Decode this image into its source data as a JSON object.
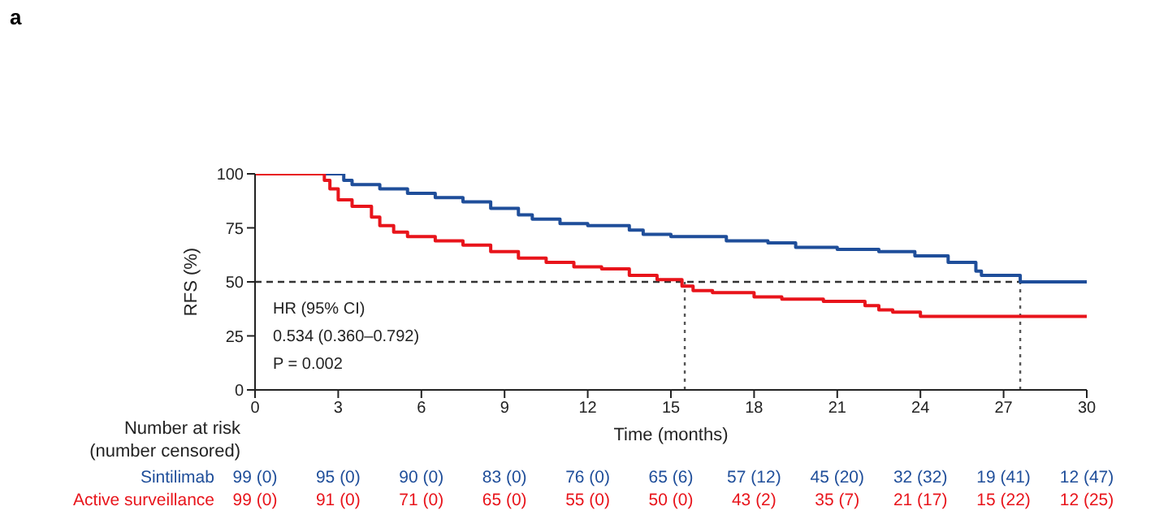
{
  "chart_data": {
    "type": "step",
    "title": "a",
    "xlabel": "Time (months)",
    "ylabel": "RFS (%)",
    "xlim": [
      0,
      30
    ],
    "xticks": [
      0,
      3,
      6,
      9,
      12,
      15,
      18,
      21,
      24,
      27,
      30
    ],
    "ylim": [
      0,
      100
    ],
    "yticks": [
      0,
      25,
      50,
      75,
      100
    ],
    "line_style": "solid",
    "series": [
      {
        "name": "Sintilimab",
        "color": "#1f4e9a",
        "x": [
          0,
          3.2,
          3.5,
          4.5,
          5.5,
          6.5,
          7.5,
          8.5,
          9.5,
          10,
          11,
          12,
          13.5,
          14,
          15,
          17,
          18.5,
          19.5,
          21,
          22.5,
          23.8,
          25,
          26,
          26.2,
          27.5,
          27.6,
          30
        ],
        "values": [
          100,
          97,
          95,
          93,
          91,
          89,
          87,
          84,
          81,
          79,
          77,
          76,
          74,
          72,
          71,
          69,
          68,
          66,
          65,
          64,
          62,
          59,
          55,
          53,
          53,
          50,
          50
        ]
      },
      {
        "name": "Active surveillance",
        "color": "#e8141b",
        "x": [
          0,
          2.5,
          2.7,
          3,
          3.5,
          4.2,
          4.5,
          5,
          5.5,
          6.5,
          7.5,
          8.5,
          9.5,
          10.5,
          11.5,
          12.5,
          13.5,
          14.5,
          15,
          15.4,
          15.8,
          16.5,
          18,
          19,
          20.5,
          22,
          22.5,
          23,
          24,
          27,
          30
        ],
        "values": [
          100,
          97,
          93,
          88,
          85,
          80,
          76,
          73,
          71,
          69,
          67,
          64,
          61,
          59,
          57,
          56,
          53,
          51,
          51,
          48,
          46,
          45,
          43,
          42,
          41,
          39,
          37,
          36,
          34,
          34,
          34
        ]
      }
    ],
    "ref_lines": [
      {
        "axis": "y",
        "value": 50,
        "line_style": "dashed",
        "color": "#333333"
      },
      {
        "axis": "x",
        "value": 15.5,
        "line_style": "dotted",
        "color": "#555555"
      },
      {
        "axis": "x",
        "value": 27.6,
        "line_style": "dotted",
        "color": "#555555"
      }
    ],
    "annotations": [
      "HR (95% CI)",
      "0.534 (0.360–0.792)",
      "P = 0.002",
      "Number at risk",
      "(number censored)",
      "99 (0)",
      "95 (0)",
      "90 (0)",
      "83 (0)",
      "76 (0)",
      "65 (6)",
      "57 (12)",
      "45 (20)",
      "32 (32)",
      "19 (41)",
      "12 (47)",
      "99 (0)",
      "91 (0)",
      "71 (0)",
      "65 (0)",
      "55 (0)",
      "50 (0)",
      "43 (2)",
      "35 (7)",
      "21 (17)",
      "15 (22)",
      "12 (25)"
    ]
  }
}
